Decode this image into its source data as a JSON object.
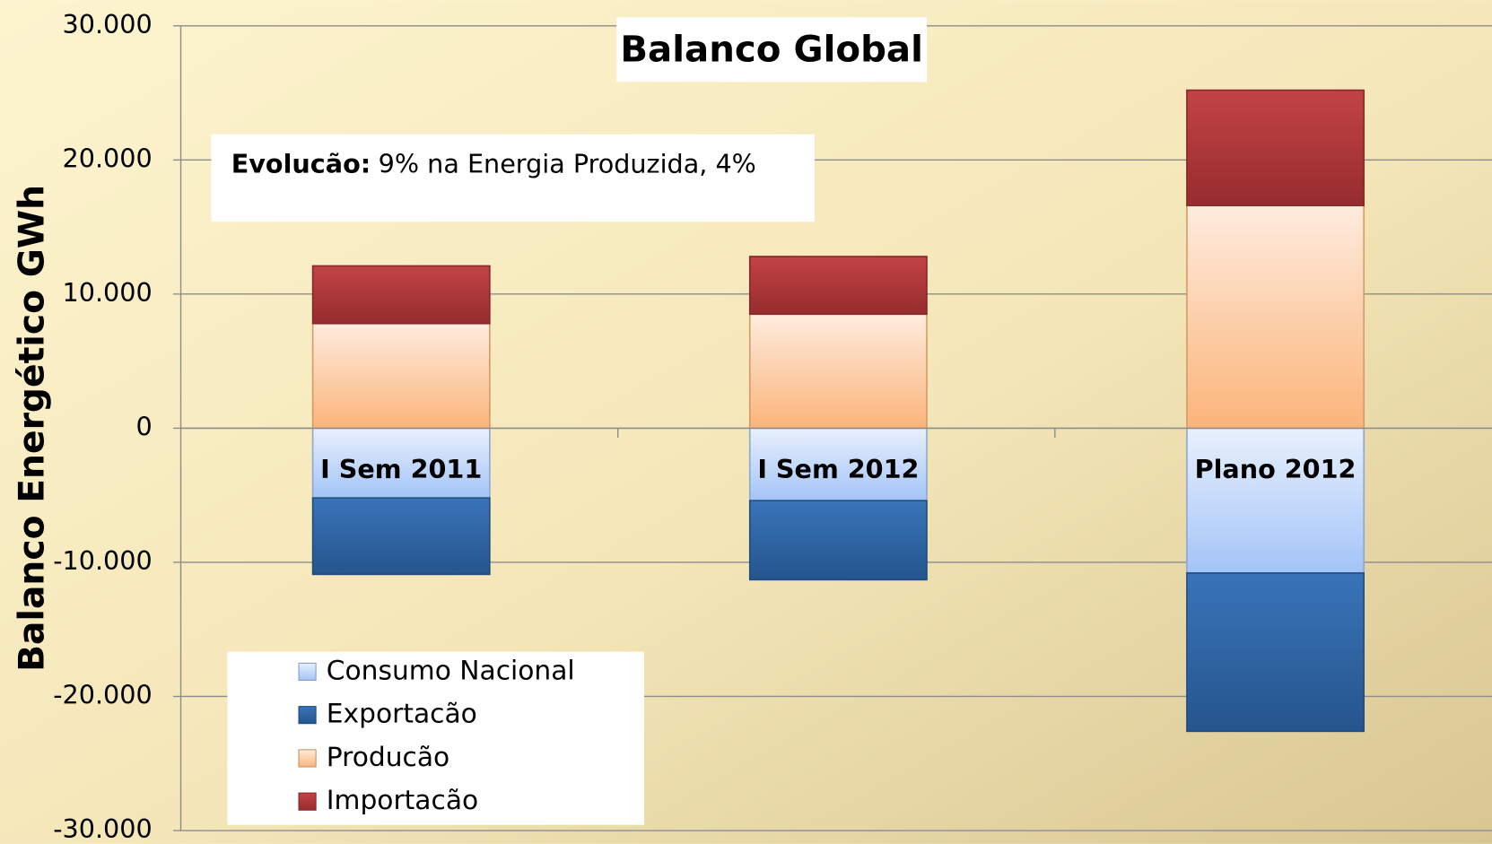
{
  "chart_data": {
    "type": "stacked_bar",
    "title": "Balanco Global",
    "y_label": "Balanco Energético GWh",
    "annotation": {
      "label": "Evolucão:",
      "text": "9% na Energia Produzida, 4%"
    },
    "categories": [
      "I Sem 2011",
      "I Sem 2012",
      "Plano 2012"
    ],
    "series": [
      {
        "name": "Consumo Nacional",
        "color": "#a3c4f7",
        "values": [
          -5200,
          -5400,
          -10800
        ]
      },
      {
        "name": "Exportacão",
        "color": "#2f6db5",
        "values": [
          -5700,
          -5900,
          -11800
        ]
      },
      {
        "name": "Producão",
        "color": "#fbb47a",
        "values": [
          7800,
          8500,
          16600
        ]
      },
      {
        "name": "Importacão",
        "color": "#c0393b",
        "values": [
          4300,
          4300,
          8600
        ]
      }
    ],
    "ylim": [
      -30000,
      30000
    ],
    "yticks": [
      {
        "value": -30000,
        "label": "-30.000"
      },
      {
        "value": -20000,
        "label": "-20.000"
      },
      {
        "value": -10000,
        "label": "-10.000"
      },
      0,
      {
        "value": 10000,
        "label": "10.000"
      },
      {
        "value": 20000,
        "label": "20.000"
      },
      {
        "value": 30000,
        "label": "30.000"
      }
    ],
    "grid": true,
    "legend": "lower left"
  }
}
